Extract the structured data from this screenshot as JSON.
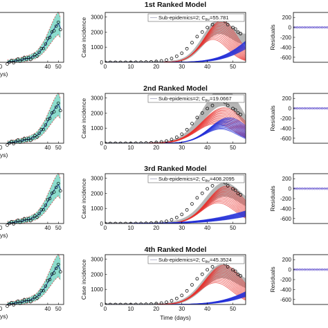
{
  "chart_data": [
    {
      "type": "scatter",
      "panel": "fit",
      "x_ticks": [
        "0",
        "40",
        "50"
      ],
      "xlabel_partial": "ys)",
      "series": [
        {
          "name": "",
          "x": [
            2,
            4,
            6,
            8,
            10,
            12,
            14,
            16,
            18,
            20,
            22,
            24,
            26,
            28,
            30,
            32,
            34,
            36,
            38,
            40,
            42,
            44,
            46,
            48,
            50,
            52
          ],
          "y": [
            10,
            30,
            45,
            70,
            95,
            110,
            140,
            165,
            190,
            230,
            260,
            300,
            360,
            420,
            500,
            640,
            780,
            960,
            1150,
            1400,
            1650,
            1900,
            2150,
            2350,
            2500,
            2200
          ]
        }
      ],
      "ylim": [
        0,
        3200
      ],
      "xlim": [
        -10,
        55
      ]
    },
    {
      "type": "line",
      "panel": "model",
      "title": "1st Ranked Model",
      "ylabel": "Case incidence",
      "x_ticks": [
        "0",
        "10",
        "20",
        "30",
        "40",
        "50"
      ],
      "y_ticks": [
        "0",
        "1000",
        "2000",
        "3000"
      ],
      "legend_prefix": "Sub-epidemics=2; C",
      "legend_sub": "thr",
      "legend_value": "=55.781",
      "xlim": [
        0,
        55
      ],
      "ylim": [
        0,
        3300
      ],
      "sub1": {
        "peak_t": 44,
        "peak_y": 2100,
        "width": 6
      },
      "sub2": {
        "peak_t": 70,
        "peak_y": 2500,
        "width": 12
      },
      "data": {
        "x": [
          0,
          2,
          4,
          6,
          8,
          10,
          12,
          14,
          16,
          18,
          20,
          22,
          24,
          26,
          28,
          30,
          32,
          34,
          36,
          38,
          40,
          42,
          44,
          45,
          46,
          47,
          48,
          50,
          51,
          52,
          53
        ],
        "y": [
          0,
          0,
          0,
          0,
          0,
          0,
          5,
          10,
          15,
          30,
          60,
          90,
          150,
          250,
          400,
          600,
          900,
          1300,
          1700,
          2000,
          2300,
          2500,
          2800,
          3000,
          2900,
          2700,
          2500,
          2300,
          2200,
          2000,
          1900
        ]
      }
    },
    {
      "type": "line",
      "panel": "model",
      "title": "2nd Ranked Model",
      "ylabel": "Case incidence",
      "x_ticks": [
        "0",
        "10",
        "20",
        "30",
        "40",
        "50"
      ],
      "y_ticks": [
        "0",
        "1000",
        "2000",
        "3000"
      ],
      "legend_prefix": "Sub-epidemics=2; C",
      "legend_sub": "thr",
      "legend_value": "=19.0667",
      "xlim": [
        0,
        55
      ],
      "ylim": [
        0,
        3300
      ],
      "sub1": {
        "peak_t": 45,
        "peak_y": 1800,
        "width": 8
      },
      "sub2": {
        "peak_t": 47,
        "peak_y": 1300,
        "width": 7
      },
      "data": {
        "x": [
          0,
          2,
          4,
          6,
          8,
          10,
          12,
          14,
          16,
          18,
          20,
          22,
          24,
          26,
          28,
          30,
          32,
          34,
          36,
          38,
          40,
          42,
          44,
          45,
          46,
          47,
          48,
          50,
          51,
          52,
          53
        ],
        "y": [
          0,
          0,
          0,
          0,
          0,
          0,
          5,
          10,
          15,
          30,
          60,
          90,
          150,
          250,
          400,
          600,
          900,
          1300,
          1700,
          2000,
          2300,
          2500,
          2800,
          3000,
          2900,
          2700,
          2500,
          2300,
          2200,
          2000,
          1900
        ]
      }
    },
    {
      "type": "line",
      "panel": "model",
      "title": "3rd Ranked Model",
      "ylabel": "Case incidence",
      "x_ticks": [
        "0",
        "10",
        "20",
        "30",
        "40",
        "50"
      ],
      "y_ticks": [
        "0",
        "1000",
        "2000",
        "3000"
      ],
      "legend_prefix": "Sub-epidemics=2; C",
      "legend_sub": "thr",
      "legend_value": "=408.2095",
      "xlim": [
        0,
        55
      ],
      "ylim": [
        0,
        3300
      ],
      "sub1": {
        "peak_t": 46,
        "peak_y": 1900,
        "width": 7
      },
      "sub2": {
        "peak_t": 80,
        "peak_y": 1400,
        "width": 20
      },
      "data": {
        "x": [
          0,
          2,
          4,
          6,
          8,
          10,
          12,
          14,
          16,
          18,
          20,
          22,
          24,
          26,
          28,
          30,
          32,
          34,
          36,
          38,
          40,
          42,
          44,
          45,
          46,
          47,
          48,
          50,
          51,
          52,
          53
        ],
        "y": [
          0,
          0,
          0,
          0,
          0,
          0,
          5,
          10,
          15,
          30,
          60,
          90,
          150,
          250,
          400,
          600,
          900,
          1300,
          1700,
          2000,
          2300,
          2500,
          2800,
          3000,
          2900,
          2700,
          2500,
          2300,
          2200,
          2000,
          1900
        ]
      }
    },
    {
      "type": "line",
      "panel": "model",
      "title": "4th Ranked Model",
      "ylabel": "Case incidence",
      "xlabel": "Time (days)",
      "x_ticks": [
        "0",
        "10",
        "20",
        "30",
        "40",
        "50"
      ],
      "y_ticks": [
        "0",
        "1000",
        "2000",
        "3000"
      ],
      "legend_prefix": "Sub-epidemics=2; C",
      "legend_sub": "thr",
      "legend_value": "=45.3524",
      "xlim": [
        0,
        55
      ],
      "ylim": [
        0,
        3300
      ],
      "sub1": {
        "peak_t": 45,
        "peak_y": 2000,
        "width": 7
      },
      "sub2": {
        "peak_t": 72,
        "peak_y": 1600,
        "width": 13
      },
      "data": {
        "x": [
          0,
          2,
          4,
          6,
          8,
          10,
          12,
          14,
          16,
          18,
          20,
          22,
          24,
          26,
          28,
          30,
          32,
          34,
          36,
          38,
          40,
          42,
          44,
          45,
          46,
          47,
          48,
          50,
          51,
          52,
          53
        ],
        "y": [
          0,
          0,
          0,
          0,
          0,
          0,
          5,
          10,
          15,
          30,
          60,
          90,
          150,
          250,
          400,
          600,
          900,
          1300,
          1700,
          2000,
          2300,
          2500,
          2800,
          3000,
          2900,
          2700,
          2500,
          2300,
          2200,
          2000,
          1900
        ]
      }
    },
    {
      "type": "scatter",
      "panel": "residuals",
      "ylabel": "Residuals",
      "y_ticks": [
        "200",
        "0",
        "-200",
        "-400",
        "-600"
      ],
      "ylim": [
        -700,
        300
      ]
    }
  ],
  "colors": {
    "fit_band": "#7fd8c8",
    "sub1": "#e8322e",
    "sub2": "#2430d8",
    "total_band": "#a9a9a9",
    "data": "#000000",
    "residual": "#6b5bd0"
  }
}
